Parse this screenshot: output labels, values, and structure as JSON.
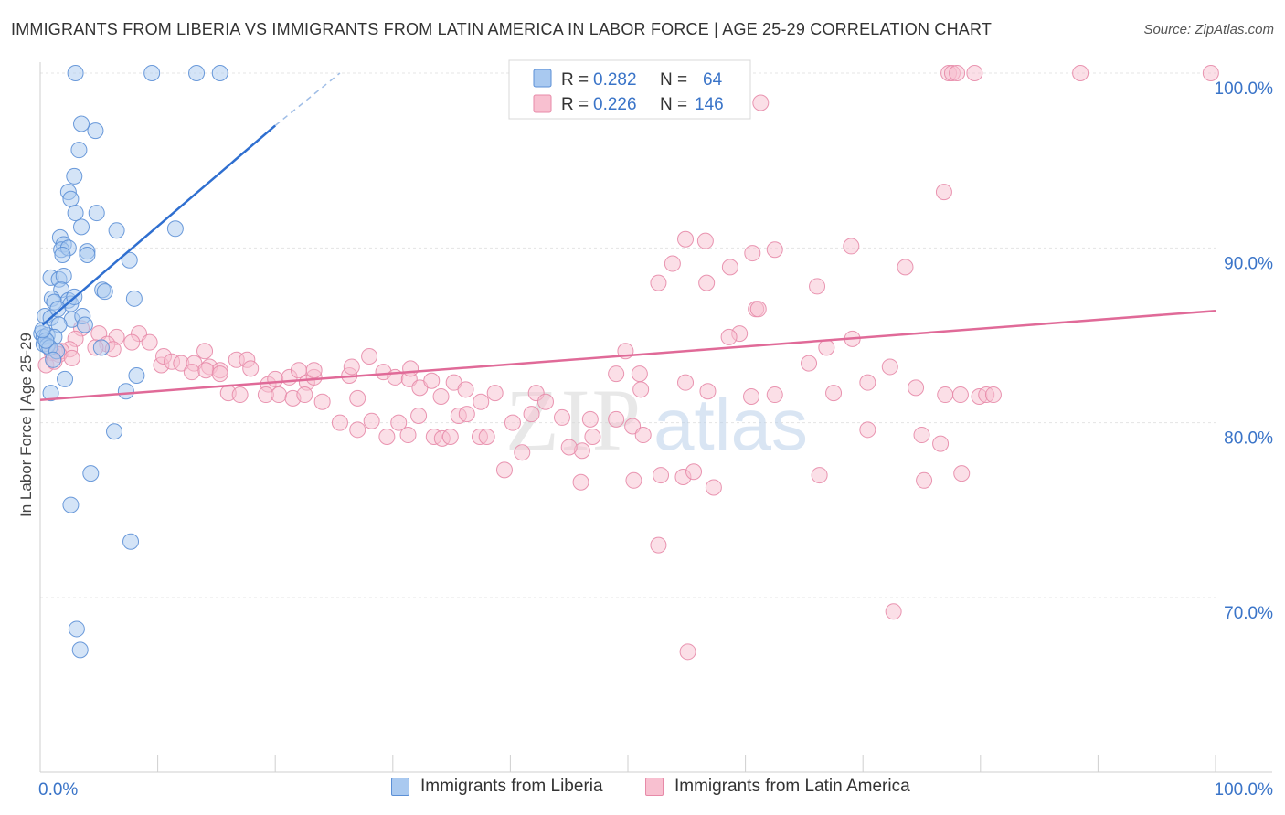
{
  "header": {
    "title": "IMMIGRANTS FROM LIBERIA VS IMMIGRANTS FROM LATIN AMERICA IN LABOR FORCE | AGE 25-29 CORRELATION CHART",
    "source": "Source: ZipAtlas.com"
  },
  "watermark": {
    "text_zip": "ZIP",
    "text_atlas": "atlas"
  },
  "legend": {
    "rows": [
      {
        "r_label": "R =",
        "r_value": "0.282",
        "n_label": "N =",
        "n_value": "64"
      },
      {
        "r_label": "R =",
        "r_value": "0.226",
        "n_label": "N =",
        "n_value": "146"
      }
    ]
  },
  "bottom_legend": {
    "items": [
      {
        "label": "Immigrants from Liberia"
      },
      {
        "label": "Immigrants from Latin America"
      }
    ]
  },
  "chart_data": {
    "type": "scatter",
    "title": "IMMIGRANTS FROM LIBERIA VS IMMIGRANTS FROM LATIN AMERICA IN LABOR FORCE | AGE 25-29 CORRELATION CHART",
    "xlabel": "",
    "ylabel": "In Labor Force | Age 25-29",
    "x_tick_labels": [
      "0.0%",
      "100.0%"
    ],
    "y_tick_labels": [
      "70.0%",
      "80.0%",
      "90.0%",
      "100.0%"
    ],
    "y_ticks": [
      70,
      80,
      90,
      100
    ],
    "xlim": [
      0,
      100
    ],
    "ylim": [
      60,
      101.5
    ],
    "grid": true,
    "legend_position": "top-center",
    "colors": {
      "liberia_fill": "#a9c9f0",
      "liberia_stroke": "#5b8fd6",
      "liberia_line": "#2f6fd0",
      "latin_fill": "#f8c0d0",
      "latin_stroke": "#e78aa8",
      "latin_line": "#e06a98",
      "value_text": "#3a74c8",
      "grid": "#e4e4e4"
    },
    "series": [
      {
        "name": "Immigrants from Liberia",
        "r": 0.282,
        "n": 64,
        "trend": {
          "x0": 0.2,
          "y0": 85.6,
          "x1": 20.0,
          "y1": 97.0,
          "dash_x1": 25.5,
          "dash_y1": 100.0
        },
        "points": [
          [
            3.0,
            100
          ],
          [
            9.5,
            100
          ],
          [
            13.3,
            100
          ],
          [
            15.3,
            100
          ],
          [
            3.5,
            97.1
          ],
          [
            4.7,
            96.7
          ],
          [
            3.3,
            95.6
          ],
          [
            2.9,
            94.1
          ],
          [
            2.4,
            93.2
          ],
          [
            2.6,
            92.8
          ],
          [
            3.0,
            92.0
          ],
          [
            4.8,
            92.0
          ],
          [
            3.5,
            91.2
          ],
          [
            6.5,
            91.0
          ],
          [
            11.5,
            91.1
          ],
          [
            1.7,
            90.6
          ],
          [
            2.0,
            90.2
          ],
          [
            1.8,
            89.9
          ],
          [
            2.4,
            90.0
          ],
          [
            1.9,
            89.6
          ],
          [
            4.0,
            89.8
          ],
          [
            4.0,
            89.6
          ],
          [
            7.6,
            89.3
          ],
          [
            0.9,
            88.3
          ],
          [
            1.6,
            88.2
          ],
          [
            2.0,
            88.4
          ],
          [
            1.8,
            87.6
          ],
          [
            5.3,
            87.6
          ],
          [
            5.5,
            87.5
          ],
          [
            8.0,
            87.1
          ],
          [
            1.0,
            87.1
          ],
          [
            1.2,
            86.9
          ],
          [
            2.4,
            87.0
          ],
          [
            2.6,
            86.8
          ],
          [
            2.9,
            87.2
          ],
          [
            0.4,
            86.1
          ],
          [
            0.9,
            86.0
          ],
          [
            2.7,
            85.9
          ],
          [
            3.6,
            86.1
          ],
          [
            1.6,
            85.6
          ],
          [
            3.8,
            85.6
          ],
          [
            0.1,
            85.1
          ],
          [
            0.3,
            84.9
          ],
          [
            0.6,
            85.0
          ],
          [
            1.2,
            84.9
          ],
          [
            0.3,
            84.5
          ],
          [
            0.6,
            84.4
          ],
          [
            0.8,
            84.3
          ],
          [
            1.4,
            84.1
          ],
          [
            5.2,
            84.3
          ],
          [
            1.1,
            83.6
          ],
          [
            8.2,
            82.7
          ],
          [
            2.1,
            82.5
          ],
          [
            0.9,
            81.7
          ],
          [
            7.3,
            81.8
          ],
          [
            6.3,
            79.5
          ],
          [
            4.3,
            77.1
          ],
          [
            2.6,
            75.3
          ],
          [
            7.7,
            73.2
          ],
          [
            3.1,
            68.2
          ],
          [
            3.4,
            67.0
          ],
          [
            0.5,
            84.7
          ],
          [
            0.2,
            85.3
          ],
          [
            1.5,
            86.5
          ]
        ]
      },
      {
        "name": "Immigrants from Latin America",
        "r": 0.226,
        "n": 146,
        "trend": {
          "x0": 0.0,
          "y0": 81.3,
          "x1": 100.0,
          "y1": 86.4
        },
        "points": [
          [
            77.3,
            100
          ],
          [
            77.6,
            100
          ],
          [
            78.0,
            100
          ],
          [
            79.5,
            100
          ],
          [
            88.5,
            100
          ],
          [
            99.6,
            100
          ],
          [
            61.3,
            98.3
          ],
          [
            76.9,
            93.2
          ],
          [
            54.9,
            90.5
          ],
          [
            56.6,
            90.4
          ],
          [
            69.0,
            90.1
          ],
          [
            60.6,
            89.7
          ],
          [
            62.5,
            89.9
          ],
          [
            53.8,
            89.1
          ],
          [
            58.7,
            88.9
          ],
          [
            73.6,
            88.9
          ],
          [
            52.6,
            88.0
          ],
          [
            56.7,
            88.0
          ],
          [
            66.1,
            87.8
          ],
          [
            60.9,
            86.5
          ],
          [
            59.5,
            85.1
          ],
          [
            58.6,
            84.9
          ],
          [
            69.1,
            84.8
          ],
          [
            66.9,
            84.3
          ],
          [
            49.8,
            84.1
          ],
          [
            3.5,
            85.4
          ],
          [
            5.0,
            85.1
          ],
          [
            8.4,
            85.1
          ],
          [
            6.5,
            84.9
          ],
          [
            9.3,
            84.6
          ],
          [
            5.7,
            84.5
          ],
          [
            7.8,
            84.6
          ],
          [
            3.0,
            84.8
          ],
          [
            4.7,
            84.3
          ],
          [
            6.2,
            84.2
          ],
          [
            2.5,
            84.2
          ],
          [
            1.8,
            84.1
          ],
          [
            1.0,
            84.0
          ],
          [
            1.6,
            83.9
          ],
          [
            2.7,
            83.7
          ],
          [
            0.5,
            83.3
          ],
          [
            1.2,
            83.5
          ],
          [
            10.3,
            83.3
          ],
          [
            10.5,
            83.8
          ],
          [
            11.2,
            83.5
          ],
          [
            12.0,
            83.4
          ],
          [
            13.1,
            83.4
          ],
          [
            14.0,
            84.1
          ],
          [
            14.4,
            83.2
          ],
          [
            15.3,
            83.0
          ],
          [
            16.7,
            83.6
          ],
          [
            17.6,
            83.6
          ],
          [
            17.9,
            83.1
          ],
          [
            19.4,
            82.2
          ],
          [
            20.0,
            82.5
          ],
          [
            21.2,
            82.6
          ],
          [
            22.0,
            83.0
          ],
          [
            22.7,
            82.3
          ],
          [
            23.3,
            82.6
          ],
          [
            23.3,
            83.0
          ],
          [
            26.3,
            82.7
          ],
          [
            26.5,
            83.2
          ],
          [
            28.0,
            83.8
          ],
          [
            29.2,
            82.9
          ],
          [
            30.2,
            82.6
          ],
          [
            31.4,
            82.5
          ],
          [
            31.5,
            83.1
          ],
          [
            32.3,
            82.0
          ],
          [
            12.9,
            82.9
          ],
          [
            14.1,
            83.0
          ],
          [
            15.3,
            82.8
          ],
          [
            16.0,
            81.7
          ],
          [
            17.0,
            81.6
          ],
          [
            19.2,
            81.6
          ],
          [
            20.3,
            81.6
          ],
          [
            21.5,
            81.4
          ],
          [
            22.5,
            81.6
          ],
          [
            24.0,
            81.2
          ],
          [
            27.0,
            81.4
          ],
          [
            33.3,
            82.4
          ],
          [
            34.1,
            81.5
          ],
          [
            35.2,
            82.3
          ],
          [
            36.2,
            81.9
          ],
          [
            37.5,
            81.2
          ],
          [
            38.7,
            81.7
          ],
          [
            42.2,
            81.7
          ],
          [
            43.0,
            81.2
          ],
          [
            35.6,
            80.4
          ],
          [
            36.3,
            80.5
          ],
          [
            30.5,
            80.0
          ],
          [
            32.2,
            80.4
          ],
          [
            25.5,
            80.0
          ],
          [
            27.0,
            79.6
          ],
          [
            28.2,
            80.1
          ],
          [
            29.5,
            79.2
          ],
          [
            31.3,
            79.3
          ],
          [
            33.5,
            79.2
          ],
          [
            34.2,
            79.1
          ],
          [
            34.9,
            79.2
          ],
          [
            37.4,
            79.2
          ],
          [
            38.0,
            79.2
          ],
          [
            40.2,
            80.0
          ],
          [
            41.8,
            80.5
          ],
          [
            44.4,
            80.3
          ],
          [
            46.8,
            80.2
          ],
          [
            49.0,
            80.2
          ],
          [
            50.4,
            79.8
          ],
          [
            51.3,
            79.3
          ],
          [
            41.0,
            78.3
          ],
          [
            46.1,
            78.4
          ],
          [
            47.0,
            79.2
          ],
          [
            45.0,
            78.6
          ],
          [
            39.5,
            77.3
          ],
          [
            46.0,
            76.6
          ],
          [
            52.8,
            77.0
          ],
          [
            54.7,
            76.9
          ],
          [
            55.6,
            77.2
          ],
          [
            57.3,
            76.3
          ],
          [
            66.3,
            77.0
          ],
          [
            75.2,
            76.7
          ],
          [
            78.4,
            77.1
          ],
          [
            76.6,
            78.8
          ],
          [
            70.4,
            79.6
          ],
          [
            75.0,
            79.3
          ],
          [
            51.1,
            81.9
          ],
          [
            56.8,
            81.8
          ],
          [
            65.4,
            83.4
          ],
          [
            67.5,
            81.7
          ],
          [
            70.4,
            82.3
          ],
          [
            72.3,
            83.2
          ],
          [
            74.5,
            82.0
          ],
          [
            77.0,
            81.6
          ],
          [
            78.3,
            81.6
          ],
          [
            79.9,
            81.5
          ],
          [
            80.5,
            81.6
          ],
          [
            81.1,
            81.6
          ],
          [
            60.5,
            81.5
          ],
          [
            54.9,
            82.3
          ],
          [
            51.0,
            82.8
          ],
          [
            49.0,
            82.8
          ],
          [
            62.5,
            81.6
          ],
          [
            50.5,
            76.7
          ],
          [
            52.6,
            73.0
          ],
          [
            72.6,
            69.2
          ],
          [
            55.1,
            66.9
          ],
          [
            61.1,
            86.5
          ]
        ]
      }
    ]
  }
}
